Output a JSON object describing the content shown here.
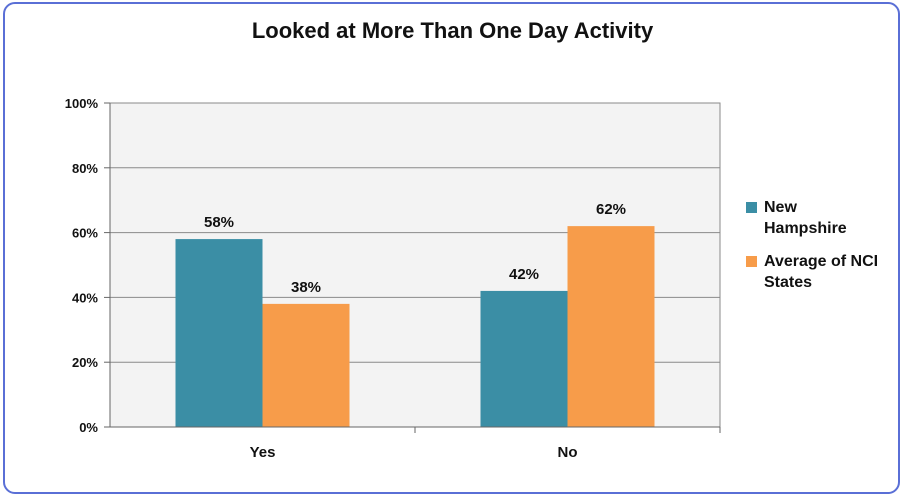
{
  "chart_data": {
    "type": "bar",
    "title": "Looked at More Than One Day Activity",
    "categories": [
      "Yes",
      "No"
    ],
    "series": [
      {
        "name": "New Hampshire",
        "values": [
          58,
          42
        ],
        "labels": [
          "58%",
          "42%"
        ],
        "color": "#3b8ea5"
      },
      {
        "name": "Average of NCI States",
        "values": [
          38,
          62
        ],
        "labels": [
          "38%",
          "62%"
        ],
        "color": "#f79c4a"
      }
    ],
    "ylim": [
      0,
      100
    ],
    "yticks": [
      "0%",
      "20%",
      "40%",
      "60%",
      "80%",
      "100%"
    ],
    "xlabel": "",
    "ylabel": "",
    "grid": true,
    "legend_position": "right"
  }
}
